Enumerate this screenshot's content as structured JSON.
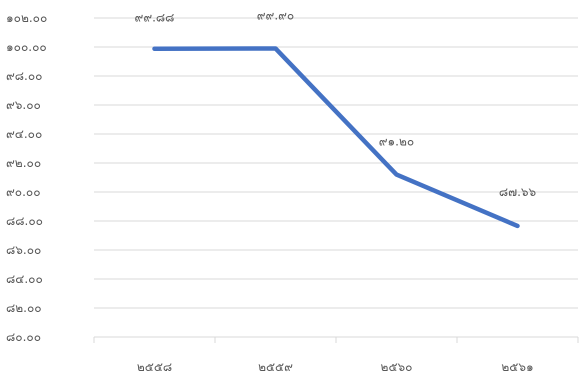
{
  "chart_data": {
    "type": "line",
    "categories": [
      "๒๕๕๘",
      "๒๕๕๙",
      "๒๕๖๐",
      "๒๕๖๑"
    ],
    "series": [
      {
        "values": [
          99.88,
          99.9,
          91.2,
          87.66
        ],
        "data_labels": [
          "๙๙.๘๘",
          "๙๙.๙๐",
          "๙๑.๒๐",
          "๘๗.๖๖"
        ],
        "color": "#4472c4"
      }
    ],
    "ylim": [
      80,
      102
    ],
    "y_ticks": [
      80,
      82,
      84,
      86,
      88,
      90,
      92,
      94,
      96,
      98,
      100,
      102
    ],
    "y_tick_labels": [
      "๘๐.๐๐",
      "๘๒.๐๐",
      "๘๔.๐๐",
      "๘๖.๐๐",
      "๘๘.๐๐",
      "๙๐.๐๐",
      "๙๒.๐๐",
      "๙๔.๐๐",
      "๙๖.๐๐",
      "๙๘.๐๐",
      "๑๐๐.๐๐",
      "๑๐๒.๐๐"
    ],
    "grid": true,
    "legend": "none"
  }
}
